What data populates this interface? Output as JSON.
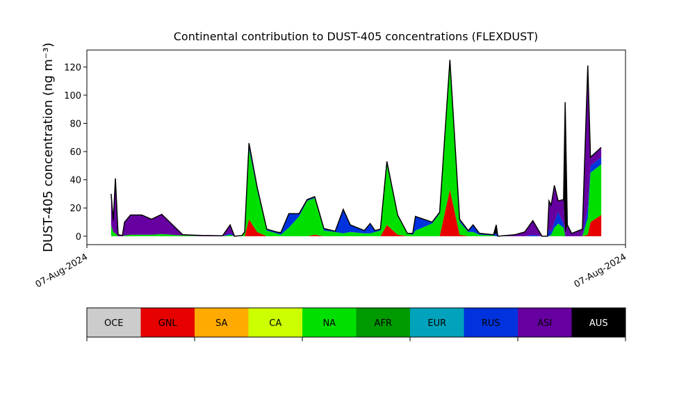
{
  "chart_data": {
    "type": "stacked_area",
    "title": "Continental contribution to DUST-405 concentrations (FLEXDUST)",
    "ylabel": "DUST-405 concentration (ng m⁻³)",
    "xlim": [
      0,
      100
    ],
    "xticks": [
      {
        "value": 0,
        "label": "07-Aug-2024"
      },
      {
        "value": 100,
        "label": "07-Aug-2024"
      }
    ],
    "ylim": [
      -6,
      132
    ],
    "yticks": [
      0,
      20,
      40,
      60,
      80,
      100,
      120
    ],
    "outline_color": "#000000",
    "x": [
      4.5,
      4.9,
      5.3,
      5.8,
      6.6,
      7.0,
      8.1,
      10.2,
      12.0,
      13.9,
      17.8,
      21.3,
      25.2,
      26.6,
      27.4,
      28.8,
      29.3,
      30.1,
      31.6,
      33.4,
      35.2,
      36.0,
      37.5,
      39.4,
      40.9,
      42.3,
      44.0,
      46.1,
      47.6,
      48.9,
      51.5,
      52.6,
      53.5,
      54.5,
      55.7,
      57.7,
      59.5,
      60.5,
      61.0,
      64.1,
      65.5,
      67.4,
      69.2,
      70.8,
      71.7,
      72.9,
      75.5,
      76.0,
      76.3,
      79.4,
      81.3,
      82.8,
      84.5,
      85.5,
      85.8,
      86.2,
      86.8,
      87.5,
      88.5,
      88.8,
      89.2,
      90.0,
      92.0,
      93.0,
      93.5,
      95.5
    ],
    "series": [
      {
        "name": "OCE",
        "color": "#cccccc",
        "values": [
          0,
          0,
          0,
          0,
          0,
          0,
          0,
          0,
          0,
          0,
          0,
          0,
          0,
          0,
          0,
          0,
          0,
          0,
          0,
          0,
          0,
          0,
          0,
          0,
          0,
          0,
          0,
          0,
          0,
          0,
          0,
          0,
          0,
          0,
          0,
          0,
          0,
          0,
          0,
          0,
          0,
          0,
          0,
          0,
          0,
          0,
          0,
          0,
          0,
          0,
          0,
          0,
          0,
          0,
          0,
          0,
          0,
          0,
          0,
          0,
          0,
          0,
          0,
          0,
          0,
          0
        ]
      },
      {
        "name": "GNL",
        "color": "#e60000",
        "values": [
          0,
          0,
          0,
          0,
          0,
          0,
          0,
          0,
          0,
          0,
          0,
          0,
          0,
          0,
          0,
          0,
          0,
          12,
          3,
          0,
          0,
          0,
          0,
          0,
          0,
          1,
          0,
          0,
          0,
          0,
          0,
          0,
          0,
          0,
          8,
          1,
          0,
          0,
          0,
          0,
          0,
          33,
          1,
          0,
          0,
          0,
          0,
          0,
          0,
          0,
          0,
          0,
          0,
          0,
          0,
          0,
          0,
          0,
          0,
          0,
          0,
          0,
          0,
          1,
          10,
          15
        ]
      },
      {
        "name": "SA",
        "color": "#ffaa00",
        "values": [
          0,
          0,
          0,
          0,
          0,
          0,
          0,
          0,
          0,
          0,
          0,
          0,
          0,
          0,
          0,
          0,
          0,
          0,
          0,
          0,
          0,
          0,
          0,
          0,
          0,
          0,
          0,
          0,
          0,
          0,
          0,
          0,
          0,
          0,
          0,
          0,
          0,
          0,
          0,
          0,
          0,
          0,
          0,
          0,
          0,
          0,
          0,
          0,
          0,
          0,
          0,
          0,
          0,
          0,
          0,
          0,
          0,
          0,
          0,
          0,
          0,
          0,
          0,
          0,
          0,
          0
        ]
      },
      {
        "name": "CA",
        "color": "#ccff00",
        "values": [
          0,
          0,
          0,
          0,
          0,
          0,
          0,
          0,
          0,
          0,
          0,
          0,
          0,
          0,
          0,
          0,
          0,
          0,
          0,
          0,
          0,
          0,
          0,
          0,
          0,
          0,
          0,
          0,
          0,
          0,
          0,
          0,
          0,
          0,
          0,
          0,
          0,
          0,
          0,
          0,
          0,
          0,
          0,
          0,
          0,
          0,
          0,
          0,
          0,
          0,
          0,
          0,
          0,
          0,
          0,
          0,
          0,
          0,
          0,
          0,
          0,
          0,
          0,
          0,
          0,
          0
        ]
      },
      {
        "name": "NA",
        "color": "#00e000",
        "values": [
          8,
          3,
          2,
          0,
          0,
          0.5,
          1,
          1,
          1,
          1.5,
          0.5,
          0,
          0,
          1,
          0,
          0.5,
          3,
          50,
          30,
          4,
          2,
          1,
          6,
          14,
          25,
          26,
          4,
          3,
          2,
          3,
          2,
          2,
          3,
          4,
          43,
          13,
          2,
          1,
          4,
          9,
          16,
          88,
          9,
          3,
          3,
          1,
          0.5,
          0,
          0,
          0,
          0,
          0,
          0,
          0,
          0,
          1,
          6,
          9,
          6,
          0,
          0,
          0,
          0,
          12,
          35,
          36
        ]
      },
      {
        "name": "AFR",
        "color": "#009900",
        "values": [
          0,
          0,
          0,
          0,
          0,
          0,
          0,
          0,
          0,
          0,
          0,
          0,
          0,
          0,
          0,
          0,
          0,
          0,
          0,
          0,
          0,
          0,
          0,
          0,
          0,
          0,
          0,
          0,
          0,
          0,
          0,
          0,
          0,
          0,
          0,
          0,
          0,
          0,
          0,
          0,
          0,
          0,
          0,
          0,
          0,
          0,
          0,
          0,
          0,
          0,
          0,
          0,
          0,
          0,
          0,
          0,
          0,
          0,
          0,
          0,
          0,
          0,
          0,
          0,
          0,
          0
        ]
      },
      {
        "name": "EUR",
        "color": "#00a3bb",
        "values": [
          0,
          0,
          0,
          0,
          0,
          0,
          0,
          0,
          0,
          0,
          0,
          0,
          0,
          0,
          0,
          0,
          0,
          0,
          0,
          0,
          0,
          0,
          0,
          0,
          0,
          0,
          0,
          0,
          0,
          0,
          0,
          0,
          0,
          0,
          0,
          0,
          0,
          0,
          0,
          0,
          0,
          0,
          0,
          0,
          0,
          0,
          0,
          0,
          0,
          0,
          0,
          0,
          0,
          0,
          0,
          0,
          0,
          0,
          0,
          0,
          0,
          0,
          0,
          0,
          0,
          0
        ]
      },
      {
        "name": "RUS",
        "color": "#0033dd",
        "values": [
          0,
          0,
          0,
          0,
          0,
          0,
          0,
          0,
          0,
          0,
          0,
          0,
          0,
          1,
          0,
          0,
          0,
          2,
          1,
          1,
          1,
          1.5,
          10,
          2,
          1,
          1,
          1.5,
          0.5,
          16,
          5,
          2,
          7,
          1,
          1,
          2,
          1,
          0,
          1,
          10,
          1,
          1,
          2,
          1,
          1,
          5,
          1,
          0.5,
          2,
          0,
          0,
          0,
          1,
          0,
          0,
          5,
          2,
          4,
          8,
          3,
          0,
          0,
          0,
          0,
          8,
          5,
          5
        ]
      },
      {
        "name": "ASI",
        "color": "#6600a0",
        "values": [
          22,
          8,
          39,
          1,
          0.5,
          9.5,
          14,
          14,
          11,
          14,
          0.5,
          0.5,
          0.3,
          6,
          0,
          0,
          0,
          2,
          1,
          0,
          0,
          0,
          0,
          0,
          0,
          0,
          0,
          0,
          1,
          0,
          0,
          0,
          0,
          0,
          0,
          0,
          0,
          0,
          0,
          0,
          0,
          2,
          1,
          0,
          0,
          0,
          0,
          0,
          0,
          1,
          3,
          10,
          0,
          0,
          20,
          19,
          26,
          8,
          17,
          2,
          8,
          2,
          5,
          100,
          6,
          7
        ]
      },
      {
        "name": "AUS",
        "color": "#000000",
        "values": [
          0,
          0,
          0,
          0,
          0,
          0,
          0,
          0,
          0,
          0,
          0,
          0,
          0,
          0,
          0,
          0,
          0,
          0,
          0,
          0,
          0,
          0,
          0,
          0,
          0,
          0,
          0,
          0,
          0,
          0,
          0,
          0,
          0,
          0,
          0,
          0,
          0,
          0,
          0,
          0,
          0,
          0,
          0,
          0,
          0,
          0,
          0,
          6,
          0,
          0,
          0,
          0,
          0,
          0,
          0,
          0,
          0,
          0,
          0,
          93,
          0,
          0,
          0,
          0,
          0,
          0
        ]
      }
    ]
  }
}
